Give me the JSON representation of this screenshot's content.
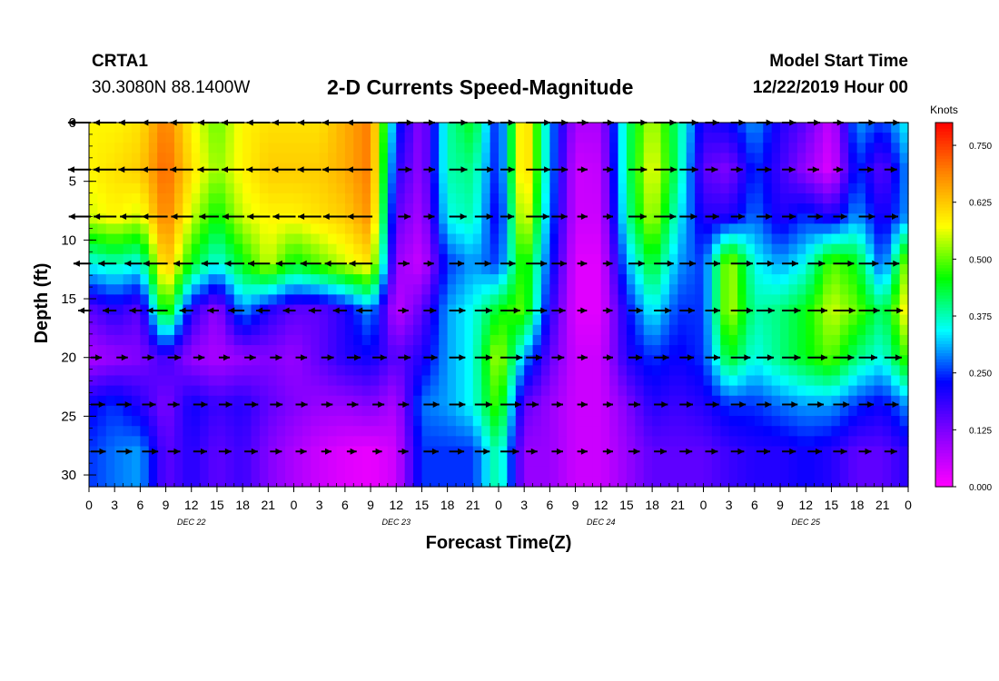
{
  "header": {
    "station": "CRTA1",
    "coords": "30.3080N 88.1400W",
    "title": "2-D Currents Speed-Magnitude",
    "model_label": "Model Start Time",
    "model_time": "12/22/2019 Hour 00"
  },
  "chart_data": {
    "type": "heatmap",
    "title": "2-D Currents Speed-Magnitude",
    "xlabel": "Forecast Time(Z)",
    "ylabel": "Depth (ft)",
    "x_range": [
      0,
      96
    ],
    "y_range": [
      0,
      31
    ],
    "y_inverted": true,
    "x_tick_labels": [
      "0",
      "3",
      "6",
      "9",
      "12",
      "15",
      "18",
      "21",
      "0",
      "3",
      "6",
      "9",
      "12",
      "15",
      "18",
      "21",
      "0",
      "3",
      "6",
      "9",
      "12",
      "15",
      "18",
      "21",
      "0",
      "3",
      "6",
      "9",
      "12",
      "15",
      "18",
      "21",
      "0"
    ],
    "y_tick_labels": [
      "0",
      "5",
      "10",
      "15",
      "20",
      "25",
      "30"
    ],
    "day_labels": [
      {
        "hour": 12,
        "text": "DEC 22"
      },
      {
        "hour": 36,
        "text": "DEC 23"
      },
      {
        "hour": 60,
        "text": "DEC 24"
      },
      {
        "hour": 84,
        "text": "DEC 25"
      }
    ],
    "colorbar": {
      "unit": "Knots",
      "range": [
        0,
        0.8
      ],
      "tick_labels": [
        "0.000",
        "0.125",
        "0.250",
        "0.375",
        "0.500",
        "0.625",
        "0.750"
      ],
      "colors": [
        "#ff00ff",
        "#8800ff",
        "#0000ff",
        "#00ffff",
        "#00ff00",
        "#ffff00",
        "#ff8800",
        "#ff0000"
      ]
    },
    "depths": [
      0,
      4,
      8,
      12,
      16,
      20,
      24,
      28
    ],
    "hours": [
      0,
      3,
      6,
      9,
      12,
      15,
      18,
      21,
      24,
      27,
      30,
      33,
      36,
      39,
      42,
      45,
      48,
      51,
      54,
      57,
      60,
      63,
      66,
      69,
      72,
      75,
      78,
      81,
      84,
      87,
      90,
      93,
      96
    ],
    "speed_grid": [
      [
        0.58,
        0.58,
        0.6,
        0.7,
        0.58,
        0.5,
        0.58,
        0.6,
        0.6,
        0.6,
        0.65,
        0.7,
        0.25,
        0.1,
        0.38,
        0.45,
        0.22,
        0.65,
        0.3,
        0.08,
        0.08,
        0.4,
        0.55,
        0.4,
        0.2,
        0.22,
        0.3,
        0.2,
        0.15,
        0.05,
        0.3,
        0.25,
        0.35
      ],
      [
        0.58,
        0.6,
        0.62,
        0.72,
        0.6,
        0.52,
        0.58,
        0.62,
        0.62,
        0.62,
        0.65,
        0.7,
        0.2,
        0.1,
        0.38,
        0.4,
        0.22,
        0.65,
        0.3,
        0.05,
        0.06,
        0.4,
        0.58,
        0.4,
        0.15,
        0.12,
        0.25,
        0.18,
        0.1,
        0.03,
        0.25,
        0.15,
        0.3
      ],
      [
        0.55,
        0.58,
        0.55,
        0.7,
        0.55,
        0.45,
        0.55,
        0.58,
        0.58,
        0.6,
        0.62,
        0.68,
        0.15,
        0.08,
        0.35,
        0.38,
        0.2,
        0.6,
        0.28,
        0.05,
        0.05,
        0.38,
        0.55,
        0.35,
        0.2,
        0.2,
        0.28,
        0.2,
        0.25,
        0.2,
        0.3,
        0.2,
        0.3
      ],
      [
        0.35,
        0.38,
        0.35,
        0.65,
        0.45,
        0.35,
        0.45,
        0.55,
        0.45,
        0.5,
        0.55,
        0.6,
        0.1,
        0.05,
        0.25,
        0.3,
        0.25,
        0.5,
        0.25,
        0.03,
        0.03,
        0.3,
        0.45,
        0.3,
        0.25,
        0.55,
        0.35,
        0.3,
        0.35,
        0.5,
        0.45,
        0.25,
        0.55
      ],
      [
        0.15,
        0.2,
        0.15,
        0.5,
        0.2,
        0.1,
        0.3,
        0.2,
        0.15,
        0.15,
        0.2,
        0.3,
        0.06,
        0.15,
        0.3,
        0.35,
        0.45,
        0.5,
        0.2,
        0.03,
        0.03,
        0.22,
        0.35,
        0.25,
        0.25,
        0.55,
        0.38,
        0.4,
        0.45,
        0.55,
        0.5,
        0.4,
        0.6
      ],
      [
        0.08,
        0.1,
        0.12,
        0.18,
        0.1,
        0.08,
        0.1,
        0.12,
        0.1,
        0.15,
        0.2,
        0.22,
        0.15,
        0.2,
        0.3,
        0.35,
        0.55,
        0.3,
        0.15,
        0.05,
        0.05,
        0.2,
        0.25,
        0.22,
        0.25,
        0.45,
        0.35,
        0.4,
        0.45,
        0.5,
        0.4,
        0.35,
        0.5
      ],
      [
        0.22,
        0.25,
        0.2,
        0.12,
        0.22,
        0.18,
        0.2,
        0.15,
        0.12,
        0.1,
        0.1,
        0.12,
        0.08,
        0.28,
        0.3,
        0.35,
        0.5,
        0.15,
        0.1,
        0.05,
        0.05,
        0.12,
        0.2,
        0.18,
        0.2,
        0.25,
        0.25,
        0.28,
        0.3,
        0.3,
        0.25,
        0.22,
        0.3
      ],
      [
        0.25,
        0.28,
        0.3,
        0.15,
        0.2,
        0.15,
        0.18,
        0.12,
        0.08,
        0.05,
        0.03,
        0.02,
        0.05,
        0.25,
        0.25,
        0.25,
        0.4,
        0.1,
        0.1,
        0.05,
        0.05,
        0.1,
        0.15,
        0.15,
        0.15,
        0.18,
        0.2,
        0.2,
        0.22,
        0.2,
        0.15,
        0.15,
        0.2
      ]
    ]
  }
}
